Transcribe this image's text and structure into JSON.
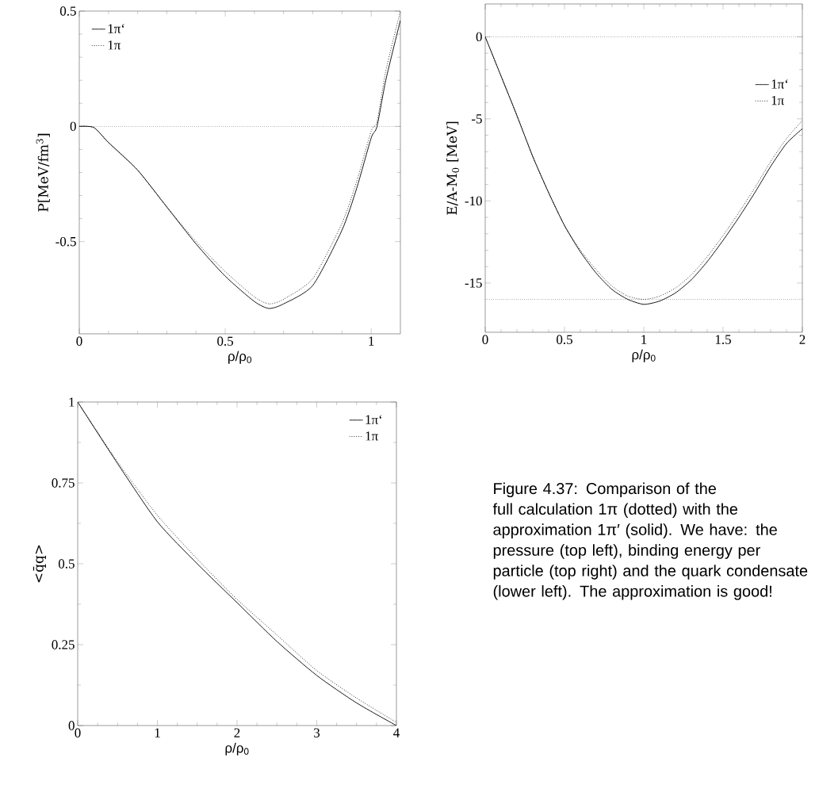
{
  "chart_data": [
    {
      "type": "line",
      "xlabel": "ρ/ρ$_{0}$",
      "ylabel": "P[MeV/fm$^{3}$]",
      "xlim": [
        0,
        1.1
      ],
      "ylim": [
        -0.9,
        0.5
      ],
      "xticks": [
        0,
        0.5,
        1
      ],
      "yticks": [
        -0.5,
        0,
        0.5
      ],
      "legend": "top left",
      "x": [
        0,
        0.05,
        0.1,
        0.2,
        0.3,
        0.4,
        0.5,
        0.6,
        0.65,
        0.7,
        0.8,
        0.9,
        0.95,
        1.0,
        1.02,
        1.05,
        1.1
      ],
      "series": [
        {
          "name": "1π‘",
          "color": "#000000",
          "line_style": "solid",
          "values": [
            0,
            -0.005,
            -0.07,
            -0.19,
            -0.35,
            -0.51,
            -0.65,
            -0.76,
            -0.79,
            -0.77,
            -0.69,
            -0.45,
            -0.27,
            -0.05,
            0,
            0.2,
            0.46
          ]
        },
        {
          "name": "1π",
          "color": "#000000",
          "line_style": "dotted",
          "values": [
            0,
            -0.005,
            -0.07,
            -0.19,
            -0.35,
            -0.5,
            -0.63,
            -0.74,
            -0.77,
            -0.75,
            -0.66,
            -0.42,
            -0.24,
            -0.02,
            0.02,
            0.24,
            0.5
          ]
        }
      ],
      "ref_lines": [
        {
          "axis": "y",
          "value": 0,
          "line_style": "dotted"
        }
      ]
    },
    {
      "type": "line",
      "xlabel": "ρ/ρ$_{0}$",
      "ylabel": "E/A-M$_{0}$ [MeV]",
      "xlim": [
        0,
        2
      ],
      "ylim": [
        -18,
        2
      ],
      "xticks": [
        0,
        0.5,
        1,
        1.5,
        2
      ],
      "yticks": [
        -15,
        -10,
        -5,
        0
      ],
      "legend": "right",
      "x": [
        0,
        0.1,
        0.2,
        0.3,
        0.4,
        0.5,
        0.6,
        0.7,
        0.8,
        0.9,
        1.0,
        1.1,
        1.2,
        1.3,
        1.4,
        1.5,
        1.6,
        1.7,
        1.8,
        1.9,
        2.0
      ],
      "series": [
        {
          "name": "1π‘",
          "color": "#000000",
          "line_style": "solid",
          "values": [
            0,
            -2.4,
            -4.8,
            -7.3,
            -9.5,
            -11.5,
            -13.1,
            -14.4,
            -15.4,
            -16.0,
            -16.3,
            -16.1,
            -15.6,
            -14.8,
            -13.7,
            -12.4,
            -11.0,
            -9.5,
            -7.9,
            -6.5,
            -5.6
          ]
        },
        {
          "name": "1π",
          "color": "#000000",
          "line_style": "dotted",
          "values": [
            0,
            -2.4,
            -4.8,
            -7.3,
            -9.5,
            -11.5,
            -13.0,
            -14.2,
            -15.2,
            -15.8,
            -16.0,
            -15.8,
            -15.3,
            -14.5,
            -13.4,
            -12.1,
            -10.7,
            -9.2,
            -7.6,
            -6.2,
            -5.1
          ]
        }
      ],
      "ref_lines": [
        {
          "axis": "y",
          "value": 0,
          "line_style": "dotted"
        },
        {
          "axis": "y",
          "value": -16,
          "line_style": "dotted"
        }
      ]
    },
    {
      "type": "line",
      "xlabel": "ρ/ρ$_{0}$",
      "ylabel": "<q̄q>",
      "xlim": [
        0,
        4
      ],
      "ylim": [
        0,
        1
      ],
      "xticks": [
        0,
        1,
        2,
        3,
        4
      ],
      "yticks": [
        0,
        0.25,
        0.5,
        0.75,
        1
      ],
      "legend": "top right",
      "x": [
        0,
        0.5,
        1,
        1.5,
        2,
        2.5,
        3,
        3.5,
        4
      ],
      "series": [
        {
          "name": "1π‘",
          "color": "#000000",
          "line_style": "solid",
          "values": [
            1,
            0.81,
            0.63,
            0.5,
            0.38,
            0.26,
            0.155,
            0.07,
            0
          ]
        },
        {
          "name": "1π",
          "color": "#000000",
          "line_style": "dotted",
          "values": [
            1,
            0.815,
            0.65,
            0.515,
            0.39,
            0.28,
            0.17,
            0.085,
            0.01
          ]
        }
      ],
      "annotations": [
        "Figure 4.37: Comparison of the full calculation 1π (dotted) with the approximation 1π′ (solid). We have: the pressure (top left), binding energy per particle (top right) and the quark condensate (lower left). The approximation is good!"
      ]
    }
  ]
}
